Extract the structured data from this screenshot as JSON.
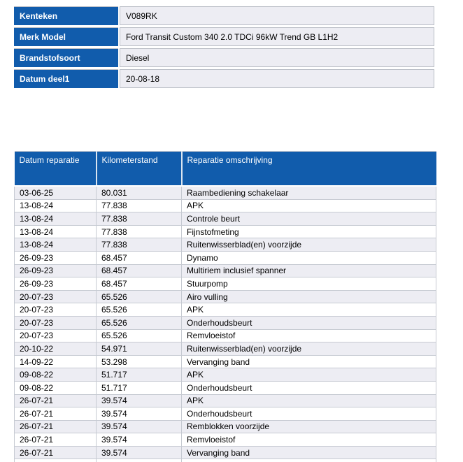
{
  "colors": {
    "header_blue": "#115cac",
    "row_alt_bg": "#ededf3",
    "row_bg": "#ffffff",
    "grid_border": "#c6cad2",
    "header_text": "#ffffff",
    "body_text": "#000000"
  },
  "vehicle_info": {
    "rows": [
      {
        "label": "Kenteken",
        "value": "V089RK"
      },
      {
        "label": "Merk Model",
        "value": "Ford Transit Custom 340 2.0 TDCi 96kW Trend GB L1H2"
      },
      {
        "label": "Brandstofsoort",
        "value": "Diesel"
      },
      {
        "label": "Datum deel1",
        "value": "20-08-18"
      }
    ]
  },
  "repair_history": {
    "columns": [
      "Datum reparatie",
      "Kilometerstand",
      "Reparatie omschrijving"
    ],
    "rows": [
      {
        "datum": "03-06-25",
        "kilometerstand": "80.031",
        "omschrijving": "Raambediening schakelaar"
      },
      {
        "datum": "13-08-24",
        "kilometerstand": "77.838",
        "omschrijving": "APK"
      },
      {
        "datum": "13-08-24",
        "kilometerstand": "77.838",
        "omschrijving": "Controle beurt"
      },
      {
        "datum": "13-08-24",
        "kilometerstand": "77.838",
        "omschrijving": "Fijnstofmeting"
      },
      {
        "datum": "13-08-24",
        "kilometerstand": "77.838",
        "omschrijving": "Ruitenwisserblad(en) voorzijde"
      },
      {
        "datum": "26-09-23",
        "kilometerstand": "68.457",
        "omschrijving": "Dynamo"
      },
      {
        "datum": "26-09-23",
        "kilometerstand": "68.457",
        "omschrijving": "Multiriem inclusief spanner"
      },
      {
        "datum": "26-09-23",
        "kilometerstand": "68.457",
        "omschrijving": "Stuurpomp"
      },
      {
        "datum": "20-07-23",
        "kilometerstand": "65.526",
        "omschrijving": "Airo vulling"
      },
      {
        "datum": "20-07-23",
        "kilometerstand": "65.526",
        "omschrijving": "APK"
      },
      {
        "datum": "20-07-23",
        "kilometerstand": "65.526",
        "omschrijving": "Onderhoudsbeurt"
      },
      {
        "datum": "20-07-23",
        "kilometerstand": "65.526",
        "omschrijving": "Remvloeistof"
      },
      {
        "datum": "20-10-22",
        "kilometerstand": "54.971",
        "omschrijving": "Ruitenwisserblad(en) voorzijde"
      },
      {
        "datum": "14-09-22",
        "kilometerstand": "53.298",
        "omschrijving": "Vervanging band"
      },
      {
        "datum": "09-08-22",
        "kilometerstand": "51.717",
        "omschrijving": "APK"
      },
      {
        "datum": "09-08-22",
        "kilometerstand": "51.717",
        "omschrijving": "Onderhoudsbeurt"
      },
      {
        "datum": "26-07-21",
        "kilometerstand": "39.574",
        "omschrijving": "APK"
      },
      {
        "datum": "26-07-21",
        "kilometerstand": "39.574",
        "omschrijving": "Onderhoudsbeurt"
      },
      {
        "datum": "26-07-21",
        "kilometerstand": "39.574",
        "omschrijving": "Remblokken voorzijde"
      },
      {
        "datum": "26-07-21",
        "kilometerstand": "39.574",
        "omschrijving": "Remvloeistof"
      },
      {
        "datum": "26-07-21",
        "kilometerstand": "39.574",
        "omschrijving": "Vervanging band"
      }
    ]
  }
}
